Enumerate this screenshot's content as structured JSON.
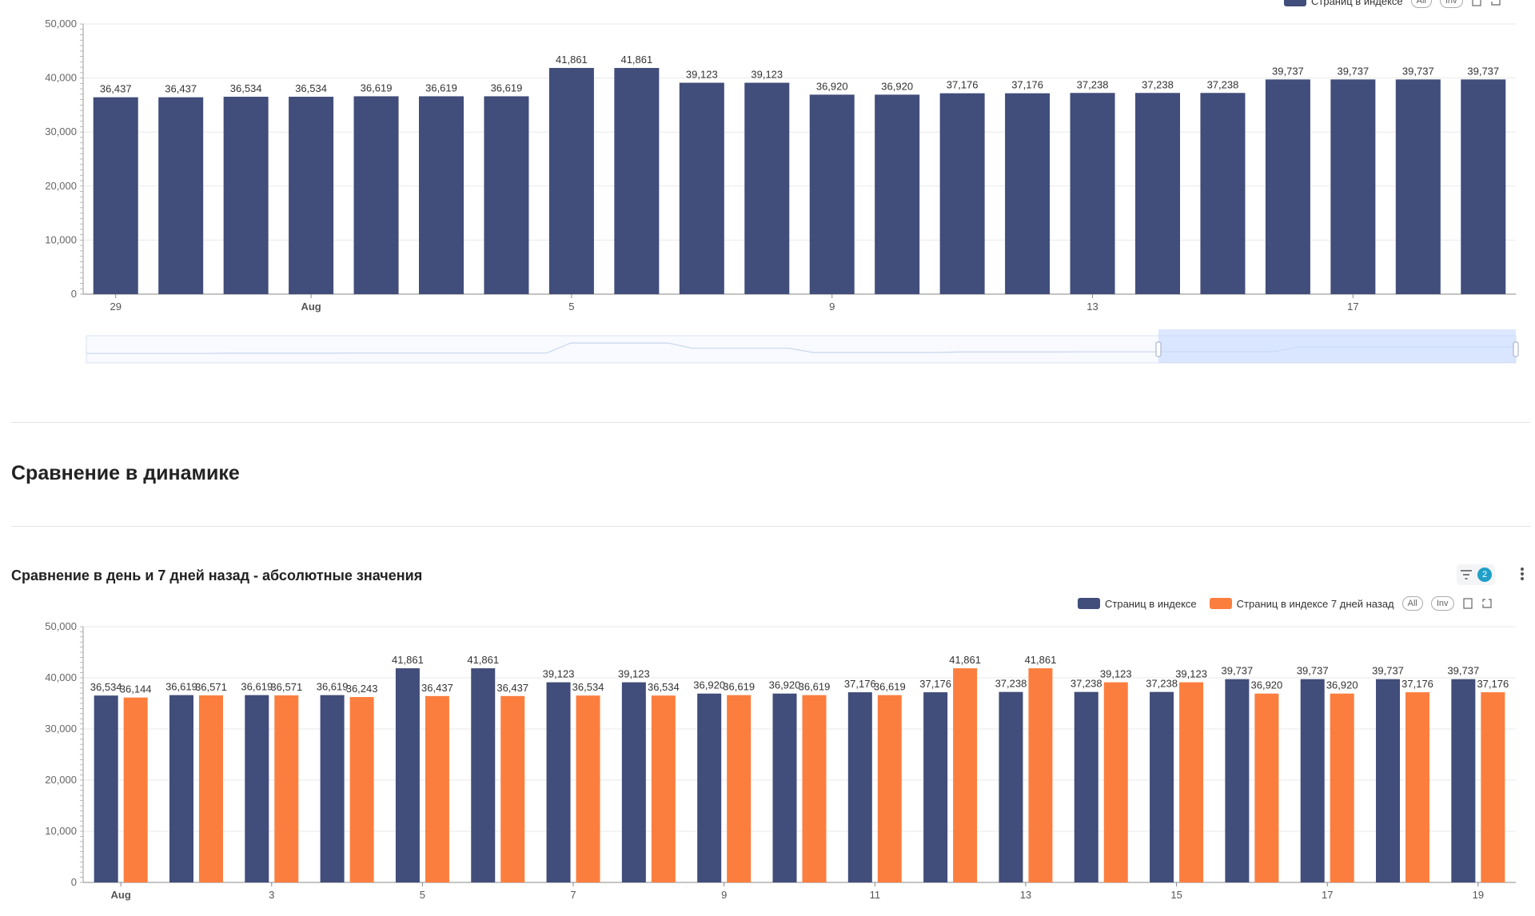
{
  "colors": {
    "navy": "#414d7a",
    "orange": "#fc7e3e",
    "grid": "#e9e9e9",
    "axis": "#555555",
    "slider": "#dbe6ff"
  },
  "top_legend": {
    "series_label": "Страниц в индексе",
    "all_label": "All",
    "inv_label": "Inv",
    "icons": [
      "bookmark-icon",
      "expand-icon"
    ]
  },
  "section": {
    "title": "Сравнение в динамике"
  },
  "bottom_chart_header": {
    "title": "Сравнение в день и 7 дней назад - абсолютные значения",
    "filter_count": "2",
    "icons": [
      "filter-icon",
      "more-vertical-icon"
    ]
  },
  "bottom_legend": {
    "series1_label": "Страниц в индексе",
    "series2_label": "Страниц в индексе 7 дней назад",
    "all_label": "All",
    "inv_label": "Inv"
  },
  "chart_data": [
    {
      "type": "bar",
      "title": "",
      "xlabel": "",
      "ylabel": "",
      "ylim": [
        0,
        50000
      ],
      "yticks": [
        "0",
        "10,000",
        "20,000",
        "30,000",
        "40,000",
        "50,000"
      ],
      "grid": true,
      "legend": "top-right",
      "tick_labels": [
        {
          "index": 0,
          "label": "29"
        },
        {
          "index": 3,
          "label": "Aug",
          "bold": true
        },
        {
          "index": 7,
          "label": "5"
        },
        {
          "index": 11,
          "label": "9"
        },
        {
          "index": 15,
          "label": "13"
        },
        {
          "index": 19,
          "label": "17"
        }
      ],
      "series": [
        {
          "name": "Страниц в индексе",
          "color": "#414d7a",
          "values": [
            36437,
            36437,
            36534,
            36534,
            36619,
            36619,
            36619,
            41861,
            41861,
            39123,
            39123,
            36920,
            36920,
            37176,
            37176,
            37238,
            37238,
            37238,
            39737,
            39737,
            39737,
            39737
          ],
          "value_labels": [
            "36,437",
            "36,437",
            "36,534",
            "36,534",
            "36,619",
            "36,619",
            "36,619",
            "41,861",
            "41,861",
            "39,123",
            "39,123",
            "36,920",
            "36,920",
            "37,176",
            "37,176",
            "37,238",
            "37,238",
            "37,238",
            "39,737",
            "39,737",
            "39,737",
            "39,737"
          ]
        }
      ],
      "datazoom": {
        "start_fraction": 0.75,
        "end_fraction": 1.0
      }
    },
    {
      "type": "bar",
      "title": "Сравнение в день и 7 дней назад - абсолютные значения",
      "xlabel": "",
      "ylabel": "",
      "ylim": [
        0,
        50000
      ],
      "yticks": [
        "0",
        "10,000",
        "20,000",
        "30,000",
        "40,000",
        "50,000"
      ],
      "grid": true,
      "legend": "top-right",
      "tick_labels": [
        {
          "index": 0,
          "label": "Aug",
          "bold": true
        },
        {
          "index": 2,
          "label": "3"
        },
        {
          "index": 4,
          "label": "5"
        },
        {
          "index": 6,
          "label": "7"
        },
        {
          "index": 8,
          "label": "9"
        },
        {
          "index": 10,
          "label": "11"
        },
        {
          "index": 12,
          "label": "13"
        },
        {
          "index": 14,
          "label": "15"
        },
        {
          "index": 16,
          "label": "17"
        },
        {
          "index": 18,
          "label": "19"
        }
      ],
      "series": [
        {
          "name": "Страниц в индексе",
          "color": "#414d7a",
          "values": [
            36534,
            36619,
            36619,
            36619,
            41861,
            41861,
            39123,
            39123,
            36920,
            36920,
            37176,
            37176,
            37238,
            37238,
            37238,
            39737,
            39737,
            39737,
            39737
          ],
          "value_labels": [
            "36,534",
            "36,619",
            "36,619",
            "36,619",
            "41,861",
            "41,861",
            "39,123",
            "39,123",
            "36,920",
            "36,920",
            "37,176",
            "37,176",
            "37,238",
            "37,238",
            "37,238",
            "39,737",
            "39,737",
            "39,737",
            "39,737"
          ]
        },
        {
          "name": "Страниц в индексе 7 дней назад",
          "color": "#fc7e3e",
          "values": [
            36144,
            36571,
            36571,
            36243,
            36437,
            36437,
            36534,
            36534,
            36619,
            36619,
            36619,
            41861,
            41861,
            39123,
            39123,
            36920,
            36920,
            37176,
            37176
          ],
          "value_labels": [
            "36,144",
            "36,571",
            "36,571",
            "36,243",
            "36,437",
            "36,437",
            "36,534",
            "36,534",
            "36,619",
            "36,619",
            "36,619",
            "41,861",
            "41,861",
            "39,123",
            "39,123",
            "36,920",
            "36,920",
            "37,176",
            "37,176"
          ]
        }
      ]
    }
  ]
}
